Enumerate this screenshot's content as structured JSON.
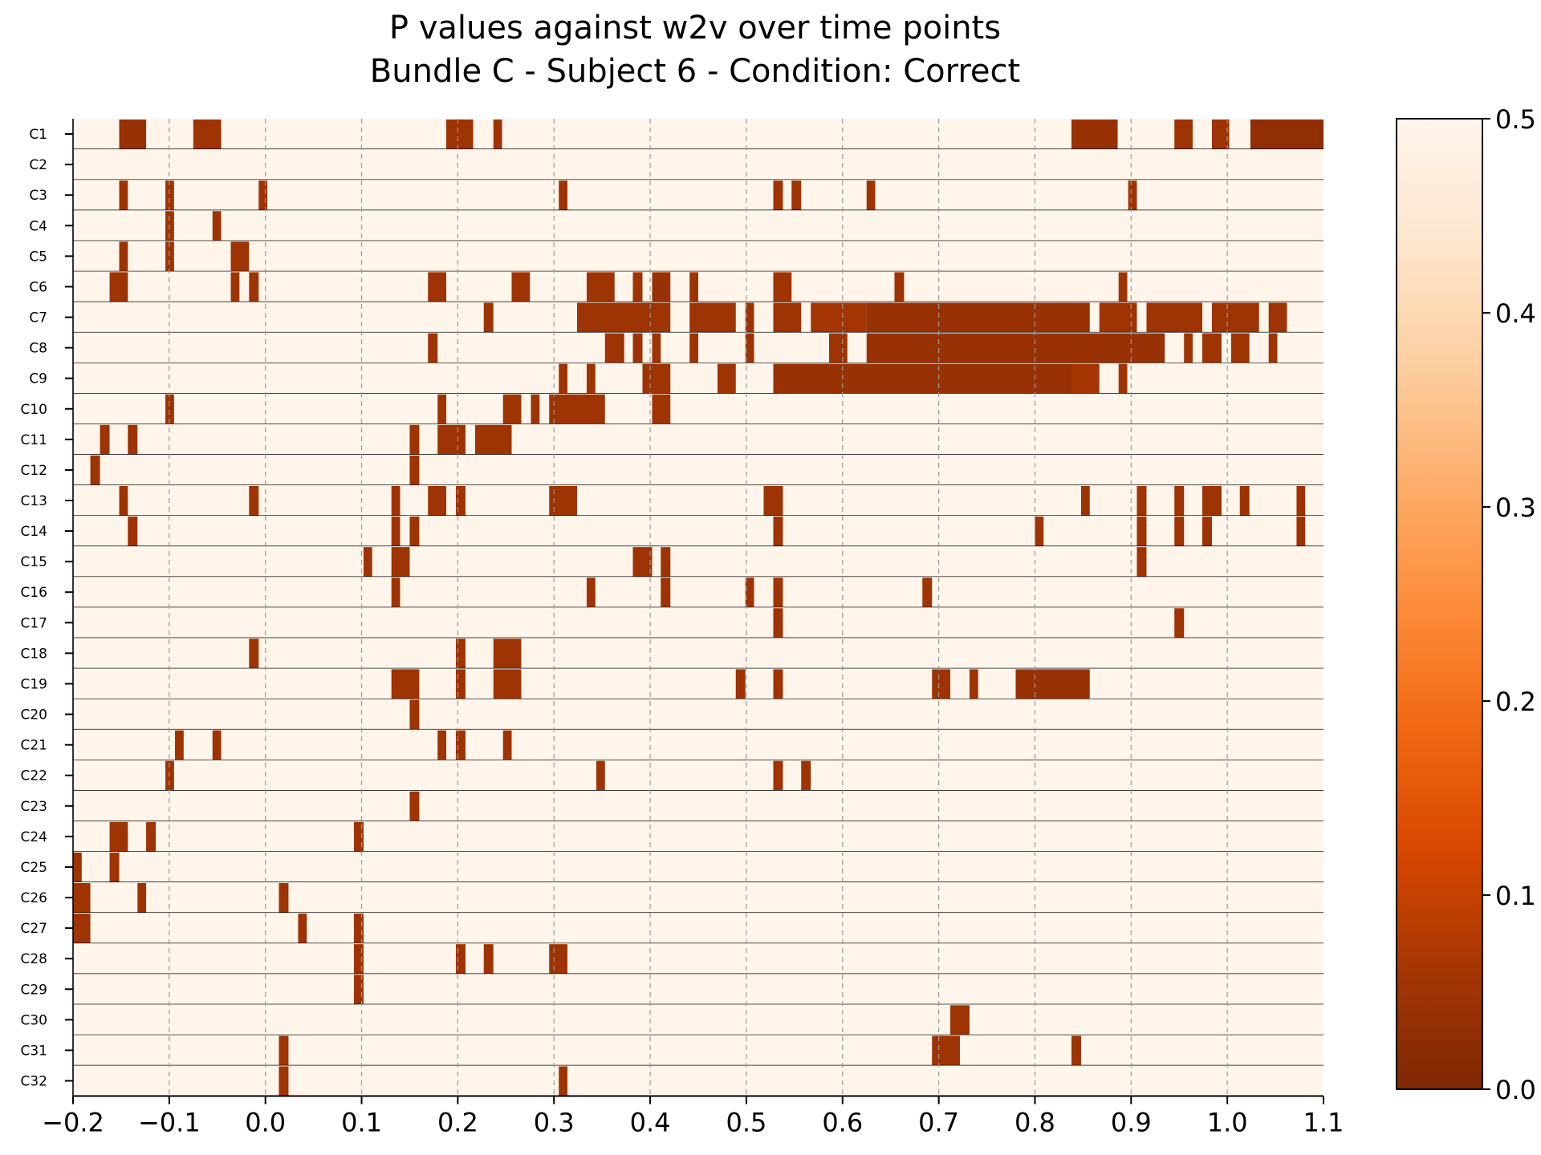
{
  "chart_data": {
    "type": "heatmap",
    "title": [
      "P values against w2v over time points",
      "Bundle C - Subject 6 - Condition: Correct"
    ],
    "xlabel": "",
    "ylabel": "",
    "xlim": [
      -0.2,
      1.1
    ],
    "xticks": [
      "−0.2",
      "−0.1",
      "0.0",
      "0.1",
      "0.2",
      "0.3",
      "0.4",
      "0.5",
      "0.6",
      "0.7",
      "0.8",
      "0.9",
      "1.0",
      "1.1"
    ],
    "xtick_values": [
      -0.2,
      -0.1,
      0.0,
      0.1,
      0.2,
      0.3,
      0.4,
      0.5,
      0.6,
      0.7,
      0.8,
      0.9,
      1.0,
      1.1
    ],
    "grid": "vertical dashed at x ticks",
    "colorbar": {
      "range": [
        0.0,
        0.5
      ],
      "ticks": [
        "0.0",
        "0.1",
        "0.2",
        "0.3",
        "0.4",
        "0.5"
      ],
      "tick_values": [
        0.0,
        0.1,
        0.2,
        0.3,
        0.4,
        0.5
      ],
      "colormap": "Oranges_r",
      "color_low": "#7f2704",
      "color_high": "#fff5eb"
    },
    "background_value": 0.5,
    "rows": [
      {
        "label": "C1",
        "segments": [
          [
            -0.152,
            -0.124,
            0.04
          ],
          [
            -0.075,
            -0.046,
            0.05
          ],
          [
            0.188,
            0.216,
            0.05
          ],
          [
            0.237,
            0.246,
            0.05
          ],
          [
            0.838,
            0.886,
            0.04
          ],
          [
            0.945,
            0.964,
            0.05
          ],
          [
            0.984,
            1.002,
            0.05
          ],
          [
            1.024,
            1.1,
            0.03
          ]
        ]
      },
      {
        "label": "C2",
        "segments": []
      },
      {
        "label": "C3",
        "segments": [
          [
            -0.152,
            -0.143,
            0.05
          ],
          [
            -0.104,
            -0.095,
            0.05
          ],
          [
            -0.007,
            0.002,
            0.05
          ],
          [
            0.305,
            0.314,
            0.05
          ],
          [
            0.528,
            0.538,
            0.05
          ],
          [
            0.547,
            0.557,
            0.05
          ],
          [
            0.625,
            0.634,
            0.05
          ],
          [
            0.897,
            0.906,
            0.05
          ]
        ]
      },
      {
        "label": "C4",
        "segments": [
          [
            -0.104,
            -0.095,
            0.05
          ],
          [
            -0.055,
            -0.046,
            0.05
          ]
        ]
      },
      {
        "label": "C5",
        "segments": [
          [
            -0.152,
            -0.143,
            0.05
          ],
          [
            -0.104,
            -0.095,
            0.05
          ],
          [
            -0.036,
            -0.017,
            0.05
          ]
        ]
      },
      {
        "label": "C6",
        "segments": [
          [
            -0.162,
            -0.143,
            0.05
          ],
          [
            -0.036,
            -0.027,
            0.05
          ],
          [
            -0.017,
            -0.007,
            0.05
          ],
          [
            0.169,
            0.188,
            0.05
          ],
          [
            0.256,
            0.275,
            0.05
          ],
          [
            0.334,
            0.363,
            0.05
          ],
          [
            0.382,
            0.392,
            0.05
          ],
          [
            0.402,
            0.421,
            0.04
          ],
          [
            0.441,
            0.45,
            0.05
          ],
          [
            0.528,
            0.547,
            0.05
          ],
          [
            0.654,
            0.664,
            0.05
          ],
          [
            0.887,
            0.896,
            0.05
          ]
        ]
      },
      {
        "label": "C7",
        "segments": [
          [
            0.227,
            0.237,
            0.05
          ],
          [
            0.324,
            0.421,
            0.05
          ],
          [
            0.441,
            0.489,
            0.05
          ],
          [
            0.499,
            0.508,
            0.05
          ],
          [
            0.528,
            0.557,
            0.05
          ],
          [
            0.567,
            0.625,
            0.06
          ],
          [
            0.625,
            0.857,
            0.04
          ],
          [
            0.867,
            0.906,
            0.05
          ],
          [
            0.916,
            0.974,
            0.05
          ],
          [
            0.984,
            1.033,
            0.05
          ],
          [
            1.043,
            1.062,
            0.05
          ]
        ]
      },
      {
        "label": "C8",
        "segments": [
          [
            0.169,
            0.179,
            0.05
          ],
          [
            0.353,
            0.373,
            0.05
          ],
          [
            0.382,
            0.392,
            0.05
          ],
          [
            0.402,
            0.411,
            0.05
          ],
          [
            0.441,
            0.45,
            0.05
          ],
          [
            0.499,
            0.508,
            0.05
          ],
          [
            0.586,
            0.605,
            0.05
          ],
          [
            0.625,
            0.935,
            0.04
          ],
          [
            0.955,
            0.964,
            0.05
          ],
          [
            0.974,
            0.994,
            0.05
          ],
          [
            1.004,
            1.023,
            0.05
          ],
          [
            1.043,
            1.052,
            0.05
          ]
        ]
      },
      {
        "label": "C9",
        "segments": [
          [
            0.305,
            0.314,
            0.05
          ],
          [
            0.334,
            0.343,
            0.05
          ],
          [
            0.392,
            0.421,
            0.05
          ],
          [
            0.47,
            0.489,
            0.05
          ],
          [
            0.528,
            0.838,
            0.04
          ],
          [
            0.838,
            0.867,
            0.06
          ],
          [
            0.887,
            0.896,
            0.05
          ]
        ]
      },
      {
        "label": "C10",
        "segments": [
          [
            -0.104,
            -0.095,
            0.05
          ],
          [
            0.179,
            0.188,
            0.05
          ],
          [
            0.247,
            0.266,
            0.05
          ],
          [
            0.276,
            0.285,
            0.05
          ],
          [
            0.295,
            0.353,
            0.05
          ],
          [
            0.402,
            0.421,
            0.05
          ]
        ]
      },
      {
        "label": "C11",
        "segments": [
          [
            -0.172,
            -0.162,
            0.05
          ],
          [
            -0.143,
            -0.133,
            0.05
          ],
          [
            0.15,
            0.16,
            0.05
          ],
          [
            0.179,
            0.208,
            0.05
          ],
          [
            0.218,
            0.256,
            0.05
          ]
        ]
      },
      {
        "label": "C12",
        "segments": [
          [
            -0.182,
            -0.172,
            0.05
          ],
          [
            0.15,
            0.16,
            0.05
          ]
        ]
      },
      {
        "label": "C13",
        "segments": [
          [
            -0.152,
            -0.143,
            0.05
          ],
          [
            -0.017,
            -0.007,
            0.05
          ],
          [
            0.131,
            0.14,
            0.05
          ],
          [
            0.169,
            0.188,
            0.05
          ],
          [
            0.198,
            0.208,
            0.05
          ],
          [
            0.295,
            0.324,
            0.05
          ],
          [
            0.518,
            0.538,
            0.05
          ],
          [
            0.848,
            0.857,
            0.05
          ],
          [
            0.906,
            0.916,
            0.05
          ],
          [
            0.945,
            0.955,
            0.05
          ],
          [
            0.974,
            0.994,
            0.05
          ],
          [
            1.013,
            1.023,
            0.05
          ],
          [
            1.072,
            1.081,
            0.05
          ]
        ]
      },
      {
        "label": "C14",
        "segments": [
          [
            -0.143,
            -0.133,
            0.05
          ],
          [
            0.131,
            0.14,
            0.05
          ],
          [
            0.15,
            0.16,
            0.05
          ],
          [
            0.528,
            0.538,
            0.05
          ],
          [
            0.8,
            0.809,
            0.05
          ],
          [
            0.906,
            0.916,
            0.05
          ],
          [
            0.945,
            0.955,
            0.05
          ],
          [
            0.974,
            0.984,
            0.05
          ],
          [
            1.072,
            1.081,
            0.05
          ]
        ]
      },
      {
        "label": "C15",
        "segments": [
          [
            0.102,
            0.111,
            0.05
          ],
          [
            0.131,
            0.15,
            0.05
          ],
          [
            0.382,
            0.402,
            0.05
          ],
          [
            0.411,
            0.421,
            0.05
          ],
          [
            0.906,
            0.916,
            0.05
          ]
        ]
      },
      {
        "label": "C16",
        "segments": [
          [
            0.131,
            0.14,
            0.05
          ],
          [
            0.334,
            0.343,
            0.05
          ],
          [
            0.411,
            0.421,
            0.05
          ],
          [
            0.499,
            0.508,
            0.05
          ],
          [
            0.528,
            0.538,
            0.05
          ],
          [
            0.683,
            0.693,
            0.05
          ]
        ]
      },
      {
        "label": "C17",
        "segments": [
          [
            0.528,
            0.538,
            0.05
          ],
          [
            0.945,
            0.955,
            0.05
          ]
        ]
      },
      {
        "label": "C18",
        "segments": [
          [
            -0.017,
            -0.007,
            0.05
          ],
          [
            0.198,
            0.208,
            0.05
          ],
          [
            0.237,
            0.266,
            0.05
          ]
        ]
      },
      {
        "label": "C19",
        "segments": [
          [
            0.131,
            0.16,
            0.05
          ],
          [
            0.198,
            0.208,
            0.05
          ],
          [
            0.237,
            0.266,
            0.05
          ],
          [
            0.489,
            0.499,
            0.05
          ],
          [
            0.528,
            0.538,
            0.05
          ],
          [
            0.693,
            0.712,
            0.05
          ],
          [
            0.732,
            0.741,
            0.05
          ],
          [
            0.78,
            0.857,
            0.04
          ]
        ]
      },
      {
        "label": "C20",
        "segments": [
          [
            0.15,
            0.16,
            0.05
          ]
        ]
      },
      {
        "label": "C21",
        "segments": [
          [
            -0.094,
            -0.085,
            0.05
          ],
          [
            -0.055,
            -0.046,
            0.05
          ],
          [
            0.179,
            0.188,
            0.05
          ],
          [
            0.198,
            0.208,
            0.05
          ],
          [
            0.247,
            0.256,
            0.05
          ]
        ]
      },
      {
        "label": "C22",
        "segments": [
          [
            -0.104,
            -0.095,
            0.05
          ],
          [
            0.344,
            0.353,
            0.05
          ],
          [
            0.528,
            0.538,
            0.05
          ],
          [
            0.557,
            0.567,
            0.05
          ]
        ]
      },
      {
        "label": "C23",
        "segments": [
          [
            0.15,
            0.16,
            0.05
          ]
        ]
      },
      {
        "label": "C24",
        "segments": [
          [
            -0.162,
            -0.143,
            0.05
          ],
          [
            -0.124,
            -0.114,
            0.05
          ],
          [
            0.092,
            0.102,
            0.05
          ]
        ]
      },
      {
        "label": "C25",
        "segments": [
          [
            -0.2,
            -0.191,
            0.05
          ],
          [
            -0.162,
            -0.152,
            0.05
          ]
        ]
      },
      {
        "label": "C26",
        "segments": [
          [
            -0.2,
            -0.182,
            0.05
          ],
          [
            -0.133,
            -0.124,
            0.05
          ],
          [
            0.014,
            0.024,
            0.05
          ]
        ]
      },
      {
        "label": "C27",
        "segments": [
          [
            -0.2,
            -0.182,
            0.05
          ],
          [
            0.034,
            0.043,
            0.05
          ],
          [
            0.092,
            0.102,
            0.05
          ]
        ]
      },
      {
        "label": "C28",
        "segments": [
          [
            0.092,
            0.102,
            0.05
          ],
          [
            0.198,
            0.208,
            0.05
          ],
          [
            0.227,
            0.237,
            0.05
          ],
          [
            0.295,
            0.314,
            0.05
          ]
        ]
      },
      {
        "label": "C29",
        "segments": [
          [
            0.092,
            0.102,
            0.05
          ]
        ]
      },
      {
        "label": "C30",
        "segments": [
          [
            0.712,
            0.732,
            0.05
          ]
        ]
      },
      {
        "label": "C31",
        "segments": [
          [
            0.014,
            0.024,
            0.05
          ],
          [
            0.693,
            0.722,
            0.05
          ],
          [
            0.838,
            0.848,
            0.05
          ]
        ]
      },
      {
        "label": "C32",
        "segments": [
          [
            0.014,
            0.024,
            0.05
          ],
          [
            0.305,
            0.314,
            0.05
          ]
        ]
      }
    ]
  }
}
